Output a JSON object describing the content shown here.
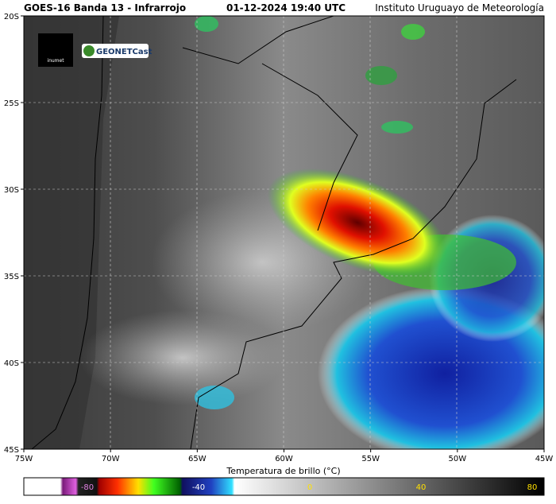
{
  "header": {
    "title": "GOES-16 Banda 13 - Infrarrojo",
    "datetime": "01-12-2024 19:40 UTC",
    "institute": "Instituto Uruguayo de Meteorología"
  },
  "map": {
    "lat_labels": [
      "20S",
      "25S",
      "30S",
      "35S",
      "40S",
      "45S"
    ],
    "lon_labels": [
      "75W",
      "70W",
      "65W",
      "60W",
      "55W",
      "50W",
      "45W"
    ],
    "logos": [
      "inumet",
      "GEONETCast"
    ]
  },
  "colorbar": {
    "label": "Temperatura de brillo (°C)",
    "ticks": [
      -80,
      -40,
      0,
      40,
      80
    ]
  }
}
